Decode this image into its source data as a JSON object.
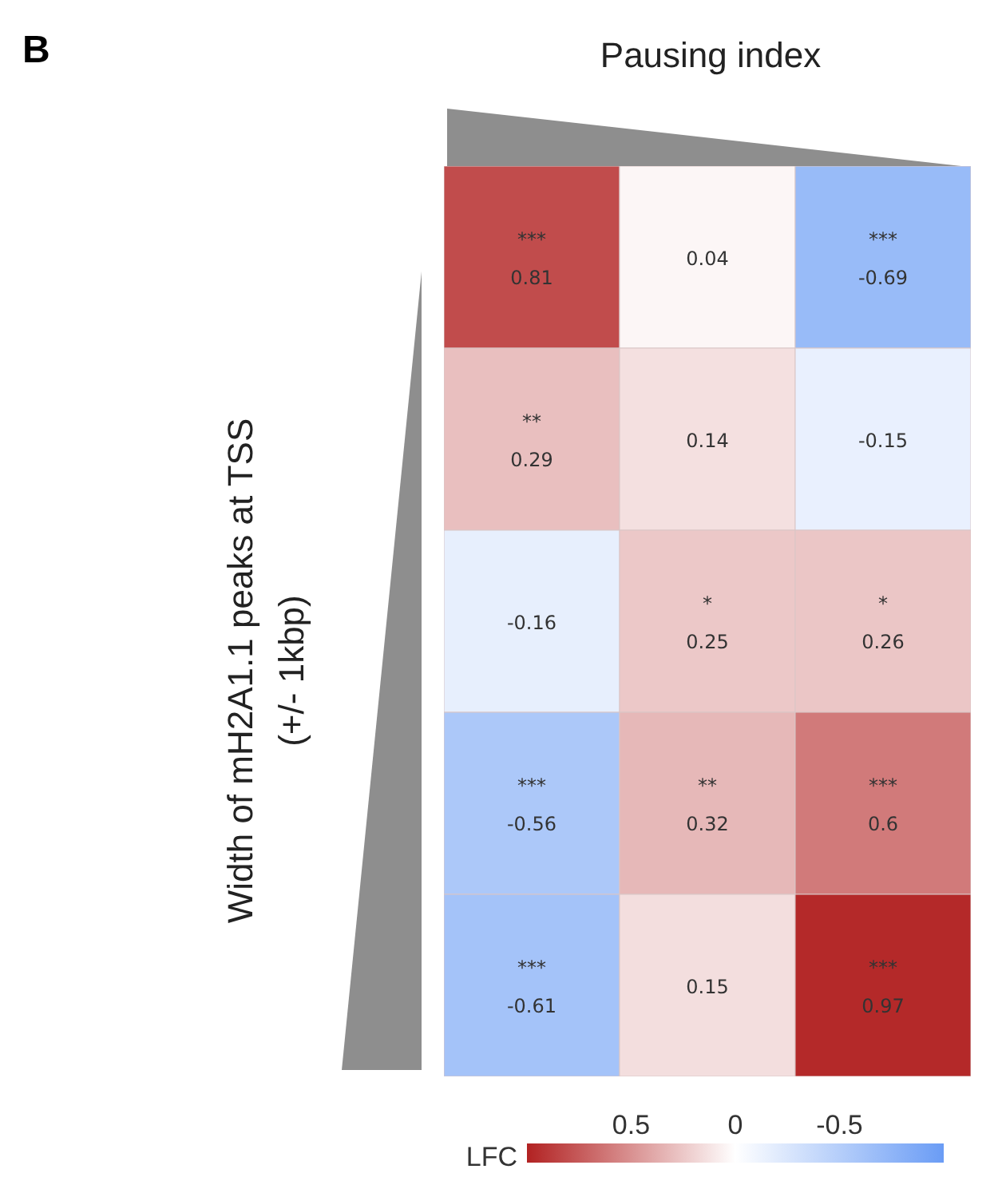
{
  "chart_data": {
    "type": "heatmap",
    "annotations": [
      "B"
    ],
    "xlabel": "Pausing index",
    "ylabel": "Width of mH2A1.1 peaks at TSS\n(+/- 1kbp)",
    "clabel": "LFC",
    "categories": [
      null,
      null,
      null
    ],
    "y_categories": [
      null,
      null,
      null,
      null,
      null
    ],
    "cells": [
      [
        0.81,
        0.04,
        -0.69
      ],
      [
        0.29,
        0.14,
        -0.15
      ],
      [
        -0.16,
        0.25,
        0.26
      ],
      [
        -0.56,
        0.32,
        0.6
      ],
      [
        -0.61,
        0.15,
        0.97
      ]
    ],
    "cell_labels": [
      [
        "***\n0.81",
        "0.04",
        "***\n-0.69"
      ],
      [
        "**\n0.29",
        "0.14",
        "-0.15"
      ],
      [
        "-0.16",
        "*\n0.25",
        "*\n0.26"
      ],
      [
        "***\n-0.56",
        "**\n0.32",
        "***\n0.6"
      ],
      [
        "***\n-0.61",
        "0.15",
        "***\n0.97"
      ]
    ],
    "clim": [
      1,
      -1
    ],
    "cticks": [
      0.5,
      0,
      -0.5
    ]
  }
}
